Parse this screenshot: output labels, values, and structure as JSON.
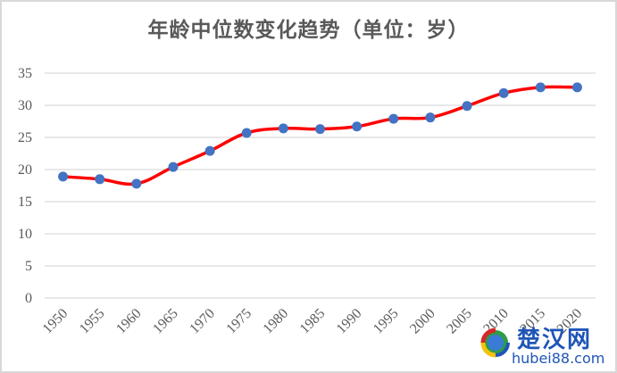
{
  "chart_data": {
    "type": "line",
    "title": "年龄中位数变化趋势（单位：岁）",
    "xlabel": "",
    "ylabel": "",
    "categories": [
      "1950",
      "1955",
      "1960",
      "1965",
      "1970",
      "1975",
      "1980",
      "1985",
      "1990",
      "1995",
      "2000",
      "2005",
      "2010",
      "2015",
      "2020"
    ],
    "series": [
      {
        "name": "年龄中位数",
        "values": [
          18.9,
          18.5,
          17.8,
          20.4,
          22.9,
          25.7,
          26.4,
          26.3,
          26.7,
          27.9,
          28.1,
          29.9,
          31.9,
          32.8,
          32.8
        ],
        "line_color": "#ff0000",
        "marker_color": "#4472c4"
      }
    ],
    "ylim": [
      0,
      35
    ],
    "yticks": [
      "0",
      "5",
      "10",
      "15",
      "20",
      "25",
      "30",
      "35"
    ],
    "grid": true,
    "legend": "none"
  },
  "watermark": {
    "cn": "楚汉网",
    "en": "hubei88.com"
  }
}
